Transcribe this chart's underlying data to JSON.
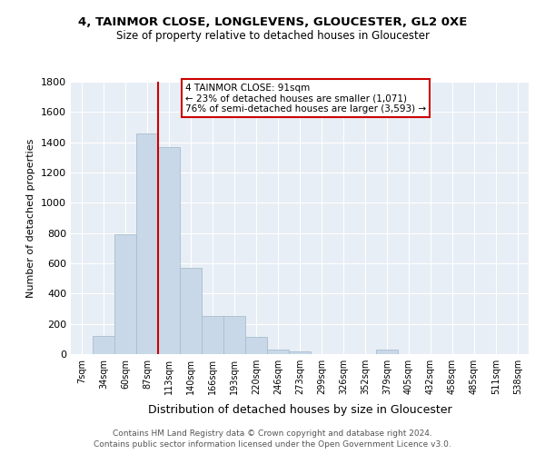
{
  "title": "4, TAINMOR CLOSE, LONGLEVENS, GLOUCESTER, GL2 0XE",
  "subtitle": "Size of property relative to detached houses in Gloucester",
  "xlabel": "Distribution of detached houses by size in Gloucester",
  "ylabel": "Number of detached properties",
  "bin_labels": [
    "7sqm",
    "34sqm",
    "60sqm",
    "87sqm",
    "113sqm",
    "140sqm",
    "166sqm",
    "193sqm",
    "220sqm",
    "246sqm",
    "273sqm",
    "299sqm",
    "326sqm",
    "352sqm",
    "379sqm",
    "405sqm",
    "432sqm",
    "458sqm",
    "485sqm",
    "511sqm",
    "538sqm"
  ],
  "bar_heights": [
    0,
    120,
    790,
    1460,
    1370,
    570,
    250,
    250,
    115,
    30,
    20,
    0,
    0,
    0,
    30,
    0,
    0,
    0,
    0,
    0,
    0
  ],
  "bar_color": "#c8d8e8",
  "bar_edge_color": "#a8bece",
  "vline_index": 3.5,
  "vline_color": "#cc0000",
  "annotation_text": "4 TAINMOR CLOSE: 91sqm\n← 23% of detached houses are smaller (1,071)\n76% of semi-detached houses are larger (3,593) →",
  "annotation_box_edge": "#cc0000",
  "ylim": [
    0,
    1800
  ],
  "yticks": [
    0,
    200,
    400,
    600,
    800,
    1000,
    1200,
    1400,
    1600,
    1800
  ],
  "background_color": "#e8eef5",
  "grid_color": "#ffffff",
  "footer1": "Contains HM Land Registry data © Crown copyright and database right 2024.",
  "footer2": "Contains public sector information licensed under the Open Government Licence v3.0."
}
